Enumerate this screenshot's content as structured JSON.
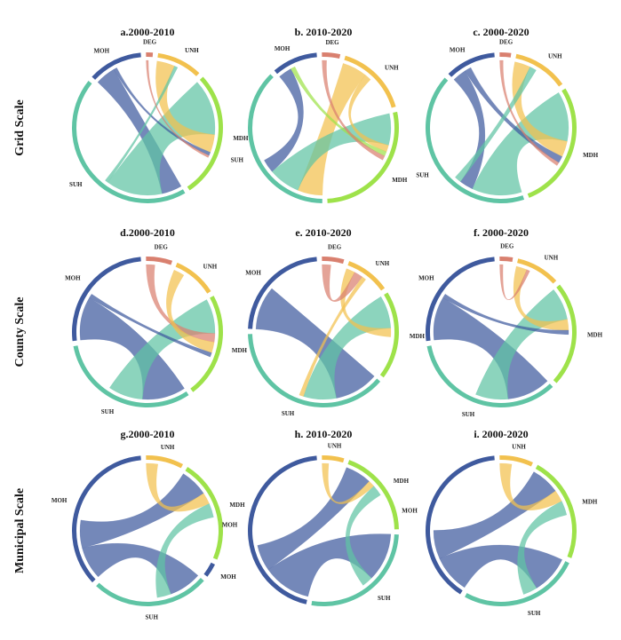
{
  "colors": {
    "DEG": "#d9806f",
    "UNH": "#f2c14e",
    "MDH": "#9ee24a",
    "SUH": "#5fc4a4",
    "MOH": "#3f5a9e"
  },
  "rows": [
    {
      "label": "Grid Scale",
      "panels": [
        {
          "title": "a.2000-2010",
          "segments": [
            {
              "id": "DEG",
              "label": "DEG",
              "value": 1.5
            },
            {
              "id": "UNH",
              "label": "UNH",
              "value": 10
            },
            {
              "id": "MDH",
              "label": "MDH",
              "value": 28
            },
            {
              "id": "SUH",
              "label": "SUH",
              "value": 45
            },
            {
              "id": "MOH",
              "label": "MOH",
              "value": 12
            }
          ],
          "links": [
            {
              "s": "MOH",
              "t": "SUH",
              "v": 9
            },
            {
              "s": "SUH",
              "t": "MDH",
              "v": 25
            },
            {
              "s": "UNH",
              "t": "MDH",
              "v": 8
            },
            {
              "s": "MOH",
              "t": "MDH",
              "v": 1.5
            },
            {
              "s": "SUH",
              "t": "UNH",
              "v": 1.5
            },
            {
              "s": "DEG",
              "t": "MDH",
              "v": 1
            }
          ]
        },
        {
          "title": "b. 2010-2020",
          "segments": [
            {
              "id": "DEG",
              "label": "DEG",
              "value": 4
            },
            {
              "id": "UNH",
              "label": "UNH",
              "value": 16
            },
            {
              "id": "MDH",
              "label": "MDH",
              "value": 28
            },
            {
              "id": "SUH",
              "label": "SUH",
              "value": 38
            },
            {
              "id": "MOH",
              "label": "MOH",
              "value": 10
            }
          ],
          "links": [
            {
              "s": "UNH",
              "t": "SUH",
              "v": 11
            },
            {
              "s": "SUH",
              "t": "MDH",
              "v": 14
            },
            {
              "s": "MOH",
              "t": "SUH",
              "v": 6
            },
            {
              "s": "UNH",
              "t": "MDH",
              "v": 3
            },
            {
              "s": "MDH",
              "t": "MOH",
              "v": 2
            },
            {
              "s": "DEG",
              "t": "MDH",
              "v": 2
            }
          ]
        },
        {
          "title": "c. 2000-2020",
          "segments": [
            {
              "id": "DEG",
              "label": "DEG",
              "value": 2.5
            },
            {
              "id": "UNH",
              "label": "UNH",
              "value": 12
            },
            {
              "id": "MDH",
              "label": "MDH",
              "value": 28
            },
            {
              "id": "SUH",
              "label": "SUH",
              "value": 42
            },
            {
              "id": "MOH",
              "label": "MOH",
              "value": 11
            }
          ],
          "links": [
            {
              "s": "SUH",
              "t": "MDH",
              "v": 22
            },
            {
              "s": "MOH",
              "t": "SUH",
              "v": 6
            },
            {
              "s": "UNH",
              "t": "MDH",
              "v": 7
            },
            {
              "s": "MOH",
              "t": "MDH",
              "v": 3
            },
            {
              "s": "SUH",
              "t": "UNH",
              "v": 3
            },
            {
              "s": "DEG",
              "t": "MDH",
              "v": 1.5
            }
          ]
        }
      ]
    },
    {
      "label": "County Scale",
      "panels": [
        {
          "title": "d.2000-2010",
          "segments": [
            {
              "id": "DEG",
              "label": "DEG",
              "value": 6
            },
            {
              "id": "UNH",
              "label": "UNH",
              "value": 10
            },
            {
              "id": "MDH",
              "label": "MDH",
              "value": 24
            },
            {
              "id": "SUH",
              "label": "SUH",
              "value": 33
            },
            {
              "id": "MOH",
              "label": "MOH",
              "value": 27
            }
          ],
          "links": [
            {
              "s": "MOH",
              "t": "SUH",
              "v": 20
            },
            {
              "s": "SUH",
              "t": "MDH",
              "v": 16
            },
            {
              "s": "DEG",
              "t": "MDH",
              "v": 4
            },
            {
              "s": "UNH",
              "t": "MDH",
              "v": 5
            },
            {
              "s": "MOH",
              "t": "MDH",
              "v": 2
            }
          ]
        },
        {
          "title": "e. 2010-2020",
          "segments": [
            {
              "id": "DEG",
              "label": "DEG",
              "value": 5
            },
            {
              "id": "UNH",
              "label": "UNH",
              "value": 10
            },
            {
              "id": "MDH",
              "label": "MDH",
              "value": 20
            },
            {
              "id": "SUH",
              "label": "SUH",
              "value": 40
            },
            {
              "id": "MOH",
              "label": "MOH",
              "value": 24
            }
          ],
          "links": [
            {
              "s": "MOH",
              "t": "SUH",
              "v": 20
            },
            {
              "s": "SUH",
              "t": "MDH",
              "v": 15
            },
            {
              "s": "UNH",
              "t": "MDH",
              "v": 4
            },
            {
              "s": "DEG",
              "t": "UNH",
              "v": 4
            },
            {
              "s": "UNH",
              "t": "SUH",
              "v": 2
            }
          ]
        },
        {
          "title": "f. 2000-2020",
          "segments": [
            {
              "id": "DEG",
              "label": "DEG",
              "value": 3
            },
            {
              "id": "UNH",
              "label": "UNH",
              "value": 10
            },
            {
              "id": "MDH",
              "label": "MDH",
              "value": 24
            },
            {
              "id": "SUH",
              "label": "SUH",
              "value": 36
            },
            {
              "id": "MOH",
              "label": "MOH",
              "value": 27
            }
          ],
          "links": [
            {
              "s": "MOH",
              "t": "SUH",
              "v": 20
            },
            {
              "s": "SUH",
              "t": "MDH",
              "v": 15
            },
            {
              "s": "UNH",
              "t": "MDH",
              "v": 5
            },
            {
              "s": "MOH",
              "t": "MDH",
              "v": 2
            },
            {
              "s": "DEG",
              "t": "UNH",
              "v": 1.5
            }
          ]
        }
      ]
    },
    {
      "label": "Municipal Scale",
      "panels": [
        {
          "title": "g.2000-2010",
          "segments": [
            {
              "id": "UNH",
              "label": "UNH",
              "value": 8
            },
            {
              "id": "MDH",
              "label": "MDH",
              "value": 22
            },
            {
              "id": "MOH2",
              "label": "MOH",
              "value": 3
            },
            {
              "id": "SUH",
              "label": "SUH",
              "value": 25
            },
            {
              "id": "MOH",
              "label": "MOH",
              "value": 35
            }
          ],
          "links": [
            {
              "s": "MOH",
              "t": "SUH",
              "v": 14
            },
            {
              "s": "MOH",
              "t": "MDH",
              "v": 12
            },
            {
              "s": "UNH",
              "t": "MDH",
              "v": 5
            },
            {
              "s": "SUH",
              "t": "MDH",
              "v": 6
            }
          ]
        },
        {
          "title": "h. 2010-2020",
          "segments": [
            {
              "id": "UNH",
              "label": "UNH",
              "value": 5
            },
            {
              "id": "MDH",
              "label": "MDH",
              "value": 20
            },
            {
              "id": "SUH",
              "label": "SUH",
              "value": 28
            },
            {
              "id": "MOH",
              "label": "MOH",
              "value": 47
            }
          ],
          "links": [
            {
              "s": "MOH",
              "t": "SUH",
              "v": 22
            },
            {
              "s": "MOH",
              "t": "MDH",
              "v": 12
            },
            {
              "s": "UNH",
              "t": "MDH",
              "v": 3
            },
            {
              "s": "SUH",
              "t": "MDH",
              "v": 5
            }
          ]
        },
        {
          "title": "i. 2000-2020",
          "segments": [
            {
              "id": "UNH",
              "label": "UNH",
              "value": 7
            },
            {
              "id": "MDH",
              "label": "MDH",
              "value": 22
            },
            {
              "id": "SUH",
              "label": "SUH",
              "value": 25
            },
            {
              "id": "MOH",
              "label": "MOH",
              "value": 38
            }
          ],
          "links": [
            {
              "s": "MOH",
              "t": "SUH",
              "v": 16
            },
            {
              "s": "MOH",
              "t": "MDH",
              "v": 12
            },
            {
              "s": "UNH",
              "t": "MDH",
              "v": 5
            },
            {
              "s": "SUH",
              "t": "MDH",
              "v": 6
            }
          ]
        }
      ]
    }
  ]
}
